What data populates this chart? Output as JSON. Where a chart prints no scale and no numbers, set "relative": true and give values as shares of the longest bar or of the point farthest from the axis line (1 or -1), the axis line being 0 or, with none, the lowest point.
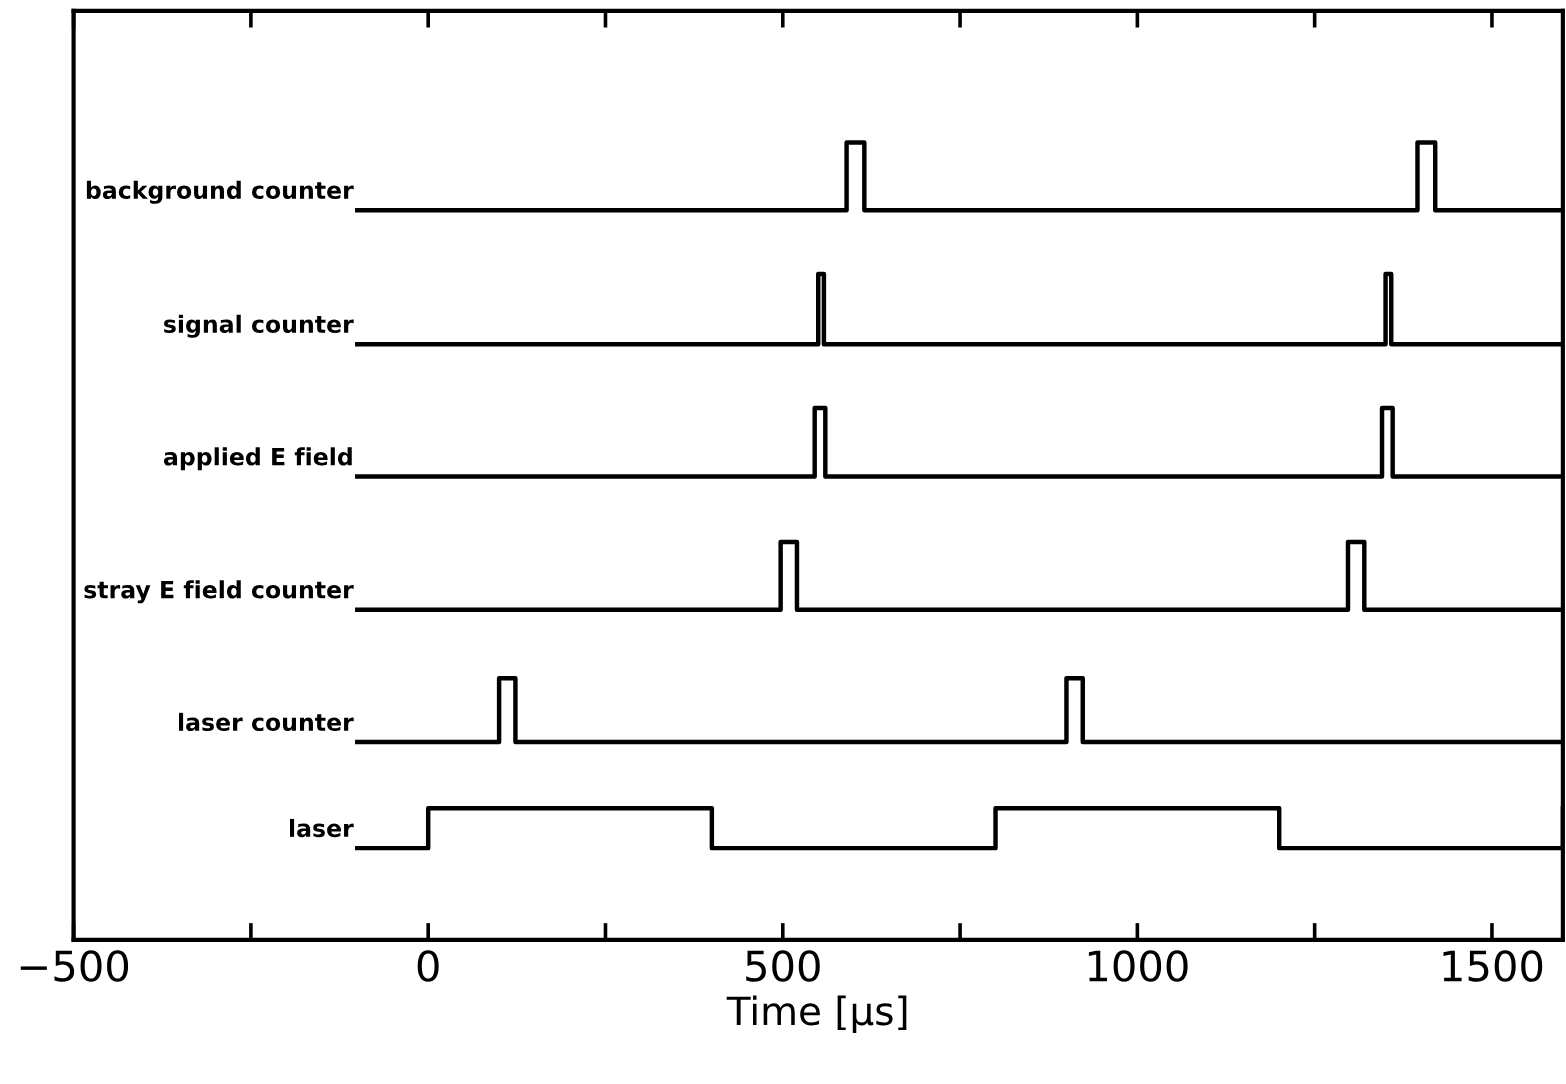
{
  "chart_data": {
    "type": "step",
    "relative": true,
    "xlabel": "Time [μs]",
    "xlim": [
      -500,
      1600
    ],
    "xticks": [
      -500,
      {
        "value": -250,
        "label": null
      },
      0,
      {
        "value": 250,
        "label": null
      },
      500,
      {
        "value": 750,
        "label": null
      },
      1000,
      {
        "value": 1250,
        "label": null
      },
      1500
    ],
    "grid": false,
    "legend": false,
    "marker": "none",
    "line_style": "solid",
    "color": "#000000",
    "series": [
      {
        "name": "background counter",
        "x": [
          -100,
          590,
          615,
          1395,
          1420,
          1600
        ],
        "values": [
          0.915,
          1,
          0.915,
          1,
          0.915,
          0.915
        ]
      },
      {
        "name": "signal counter",
        "x": [
          -100,
          550,
          558,
          1350,
          1358,
          1600
        ],
        "values": [
          0.747,
          0.835,
          0.747,
          0.835,
          0.747,
          0.747
        ]
      },
      {
        "name": "applied E field",
        "x": [
          -100,
          545,
          560,
          1345,
          1360,
          1600
        ],
        "values": [
          0.581,
          0.667,
          0.581,
          0.667,
          0.581,
          0.581
        ]
      },
      {
        "name": "stray E field counter",
        "x": [
          -100,
          497,
          520,
          1297,
          1320,
          1600
        ],
        "values": [
          0.414,
          0.499,
          0.414,
          0.499,
          0.414,
          0.414
        ]
      },
      {
        "name": "laser counter",
        "x": [
          -100,
          100,
          123,
          900,
          923,
          1600
        ],
        "values": [
          0.248,
          0.328,
          0.248,
          0.328,
          0.248,
          0.248
        ]
      },
      {
        "name": "laser",
        "x": [
          -100,
          0,
          400,
          800,
          1200,
          1600
        ],
        "values": [
          0.115,
          0.165,
          0.115,
          0.165,
          0.115,
          0.165
        ]
      }
    ]
  }
}
